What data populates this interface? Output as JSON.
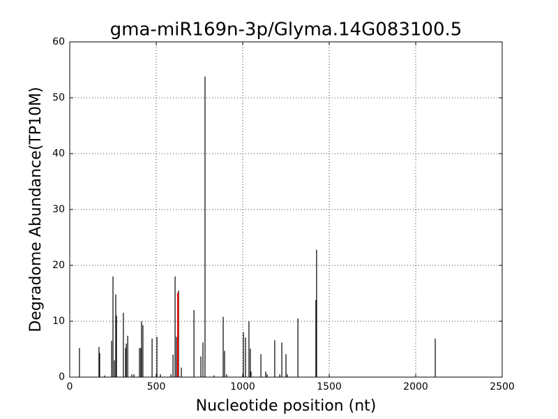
{
  "chart_data": {
    "type": "vlines",
    "title": "gma-miR169n-3p/Glyma.14G083100.5",
    "xlabel": "Nucleotide position (nt)",
    "ylabel": "Degradome Abundance(TP10M)",
    "xlim": [
      0,
      2500
    ],
    "ylim": [
      0,
      60
    ],
    "xticks": [
      0,
      500,
      1000,
      1500,
      2000,
      2500
    ],
    "yticks": [
      0,
      10,
      20,
      30,
      40,
      50,
      60
    ],
    "grid": true,
    "series": [
      {
        "color": "#000000",
        "x": [
          56,
          169,
          173,
          202,
          242,
          250,
          258,
          266,
          270,
          310,
          323,
          327,
          335,
          359,
          371,
          403,
          411,
          415,
          423,
          476,
          504,
          524,
          585,
          597,
          609,
          617,
          629,
          645,
          718,
          758,
          770,
          782,
          835,
          887,
          895,
          907,
          1004,
          1016,
          1036,
          1044,
          1048,
          1105,
          1133,
          1141,
          1185,
          1214,
          1226,
          1250,
          1258,
          1319,
          1423,
          1427,
          2113
        ],
        "values": [
          5.2,
          5.4,
          4.3,
          0.3,
          6.5,
          18,
          3,
          14.8,
          11,
          11.5,
          5.2,
          6,
          7.4,
          0.5,
          0.5,
          5.2,
          5.2,
          10,
          9.3,
          6.9,
          7.2,
          0.5,
          0.5,
          4,
          18,
          7.2,
          15.5,
          1.7,
          12,
          3.7,
          6.2,
          53.8,
          0.3,
          10.8,
          4.7,
          0.5,
          8,
          7.1,
          10,
          5.1,
          1,
          4.1,
          1,
          0.5,
          6.6,
          0.5,
          6.2,
          4.1,
          0.5,
          10.5,
          13.8,
          22.8,
          6.9
        ]
      },
      {
        "color": "#ff0000",
        "x": [
          625
        ],
        "values": [
          15.1
        ]
      }
    ]
  }
}
